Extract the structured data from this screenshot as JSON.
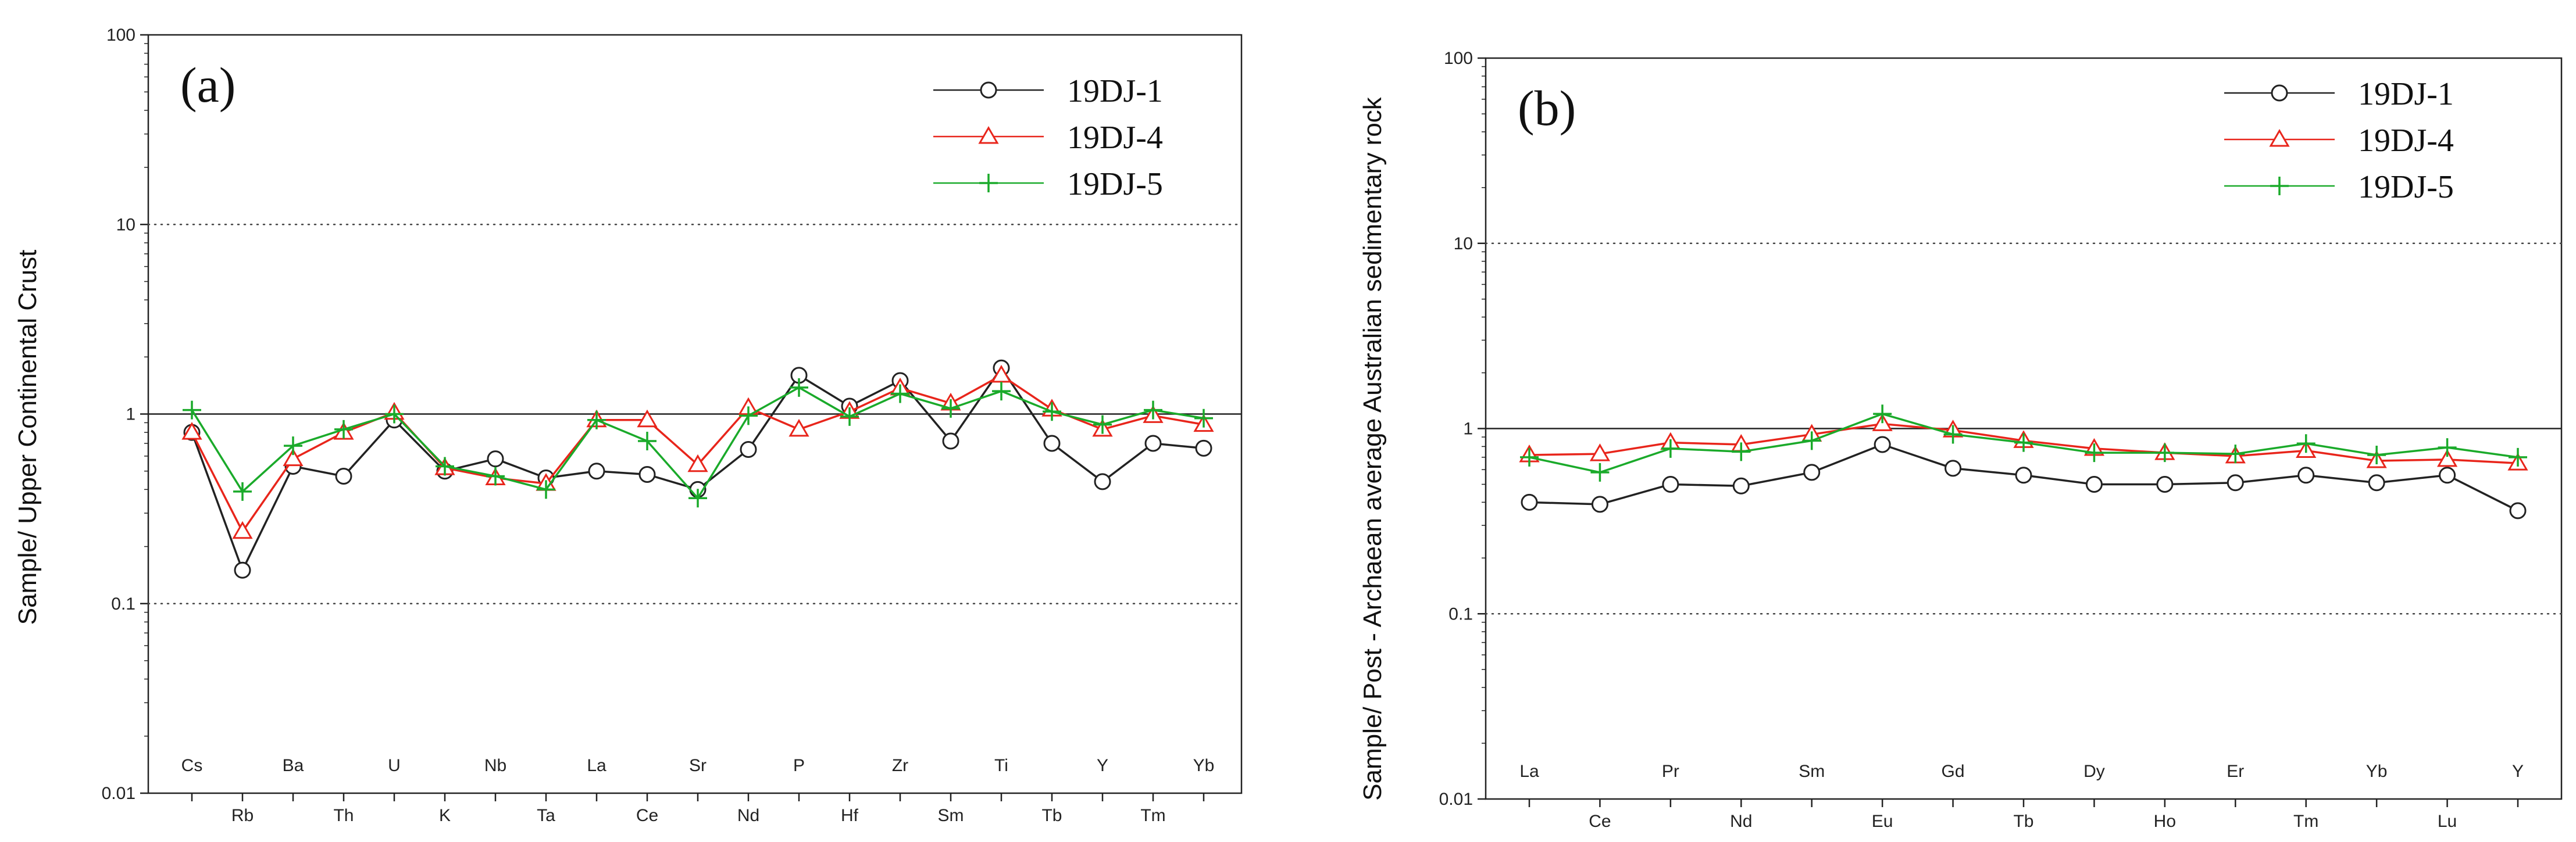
{
  "chart_data": [
    {
      "type": "line",
      "panel_label": "(a)",
      "ylabel": "Sample/ Upper Continental Crust",
      "yscale": "log",
      "ylim": [
        0.01,
        100
      ],
      "ytick_labels": [
        "0.01",
        "0.1",
        "1",
        "10",
        "100"
      ],
      "yticks": [
        0.01,
        0.1,
        1,
        10,
        100
      ],
      "categories": [
        "Cs",
        "Rb",
        "Ba",
        "Th",
        "U",
        "K",
        "Nb",
        "Ta",
        "La",
        "Ce",
        "Sr",
        "Nd",
        "P",
        "Hf",
        "Zr",
        "Sm",
        "Ti",
        "Tb",
        "Y",
        "Tm",
        "Yb"
      ],
      "series": [
        {
          "name": "19DJ-1",
          "color": "#222222",
          "marker": "circle",
          "values": [
            0.8,
            0.15,
            0.53,
            0.47,
            0.93,
            0.5,
            0.58,
            0.46,
            0.5,
            0.48,
            0.4,
            0.65,
            1.6,
            1.1,
            1.5,
            0.72,
            1.75,
            0.7,
            0.44,
            0.7,
            0.66
          ]
        },
        {
          "name": "19DJ-4",
          "color": "#e8251b",
          "marker": "triangle",
          "values": [
            0.8,
            0.24,
            0.58,
            0.8,
            1.02,
            0.52,
            0.46,
            0.43,
            0.93,
            0.93,
            0.54,
            1.08,
            0.83,
            1.03,
            1.37,
            1.14,
            1.6,
            1.06,
            0.83,
            0.98,
            0.88
          ]
        },
        {
          "name": "19DJ-5",
          "color": "#1aaa2a",
          "marker": "plus",
          "values": [
            1.05,
            0.39,
            0.68,
            0.83,
            1.0,
            0.53,
            0.47,
            0.4,
            0.93,
            0.72,
            0.36,
            0.98,
            1.38,
            0.97,
            1.28,
            1.07,
            1.32,
            1.03,
            0.88,
            1.05,
            0.95
          ]
        }
      ],
      "legend_position": "top-right",
      "reference_line": 1
    },
    {
      "type": "line",
      "panel_label": "(b)",
      "ylabel": "Sample/ Post - Archaean average Australian sedimentary rock",
      "yscale": "log",
      "ylim": [
        0.01,
        100
      ],
      "ytick_labels": [
        "0.01",
        "0.1",
        "1",
        "10",
        "100"
      ],
      "yticks": [
        0.01,
        0.1,
        1,
        10,
        100
      ],
      "categories": [
        "La",
        "Ce",
        "Pr",
        "Nd",
        "Sm",
        "Eu",
        "Gd",
        "Tb",
        "Dy",
        "Ho",
        "Er",
        "Tm",
        "Yb",
        "Lu",
        "Y"
      ],
      "series": [
        {
          "name": "19DJ-1",
          "color": "#222222",
          "marker": "circle",
          "values": [
            0.4,
            0.39,
            0.5,
            0.49,
            0.58,
            0.82,
            0.61,
            0.56,
            0.5,
            0.5,
            0.51,
            0.56,
            0.51,
            0.56,
            0.36
          ]
        },
        {
          "name": "19DJ-4",
          "color": "#e8251b",
          "marker": "triangle",
          "values": [
            0.72,
            0.73,
            0.84,
            0.82,
            0.93,
            1.06,
            0.98,
            0.86,
            0.78,
            0.74,
            0.71,
            0.76,
            0.67,
            0.68,
            0.65
          ]
        },
        {
          "name": "19DJ-5",
          "color": "#1aaa2a",
          "marker": "plus",
          "values": [
            0.7,
            0.58,
            0.78,
            0.75,
            0.86,
            1.2,
            0.93,
            0.84,
            0.74,
            0.74,
            0.73,
            0.83,
            0.72,
            0.79,
            0.7
          ]
        }
      ],
      "legend_position": "top-right",
      "reference_line": 1
    }
  ]
}
